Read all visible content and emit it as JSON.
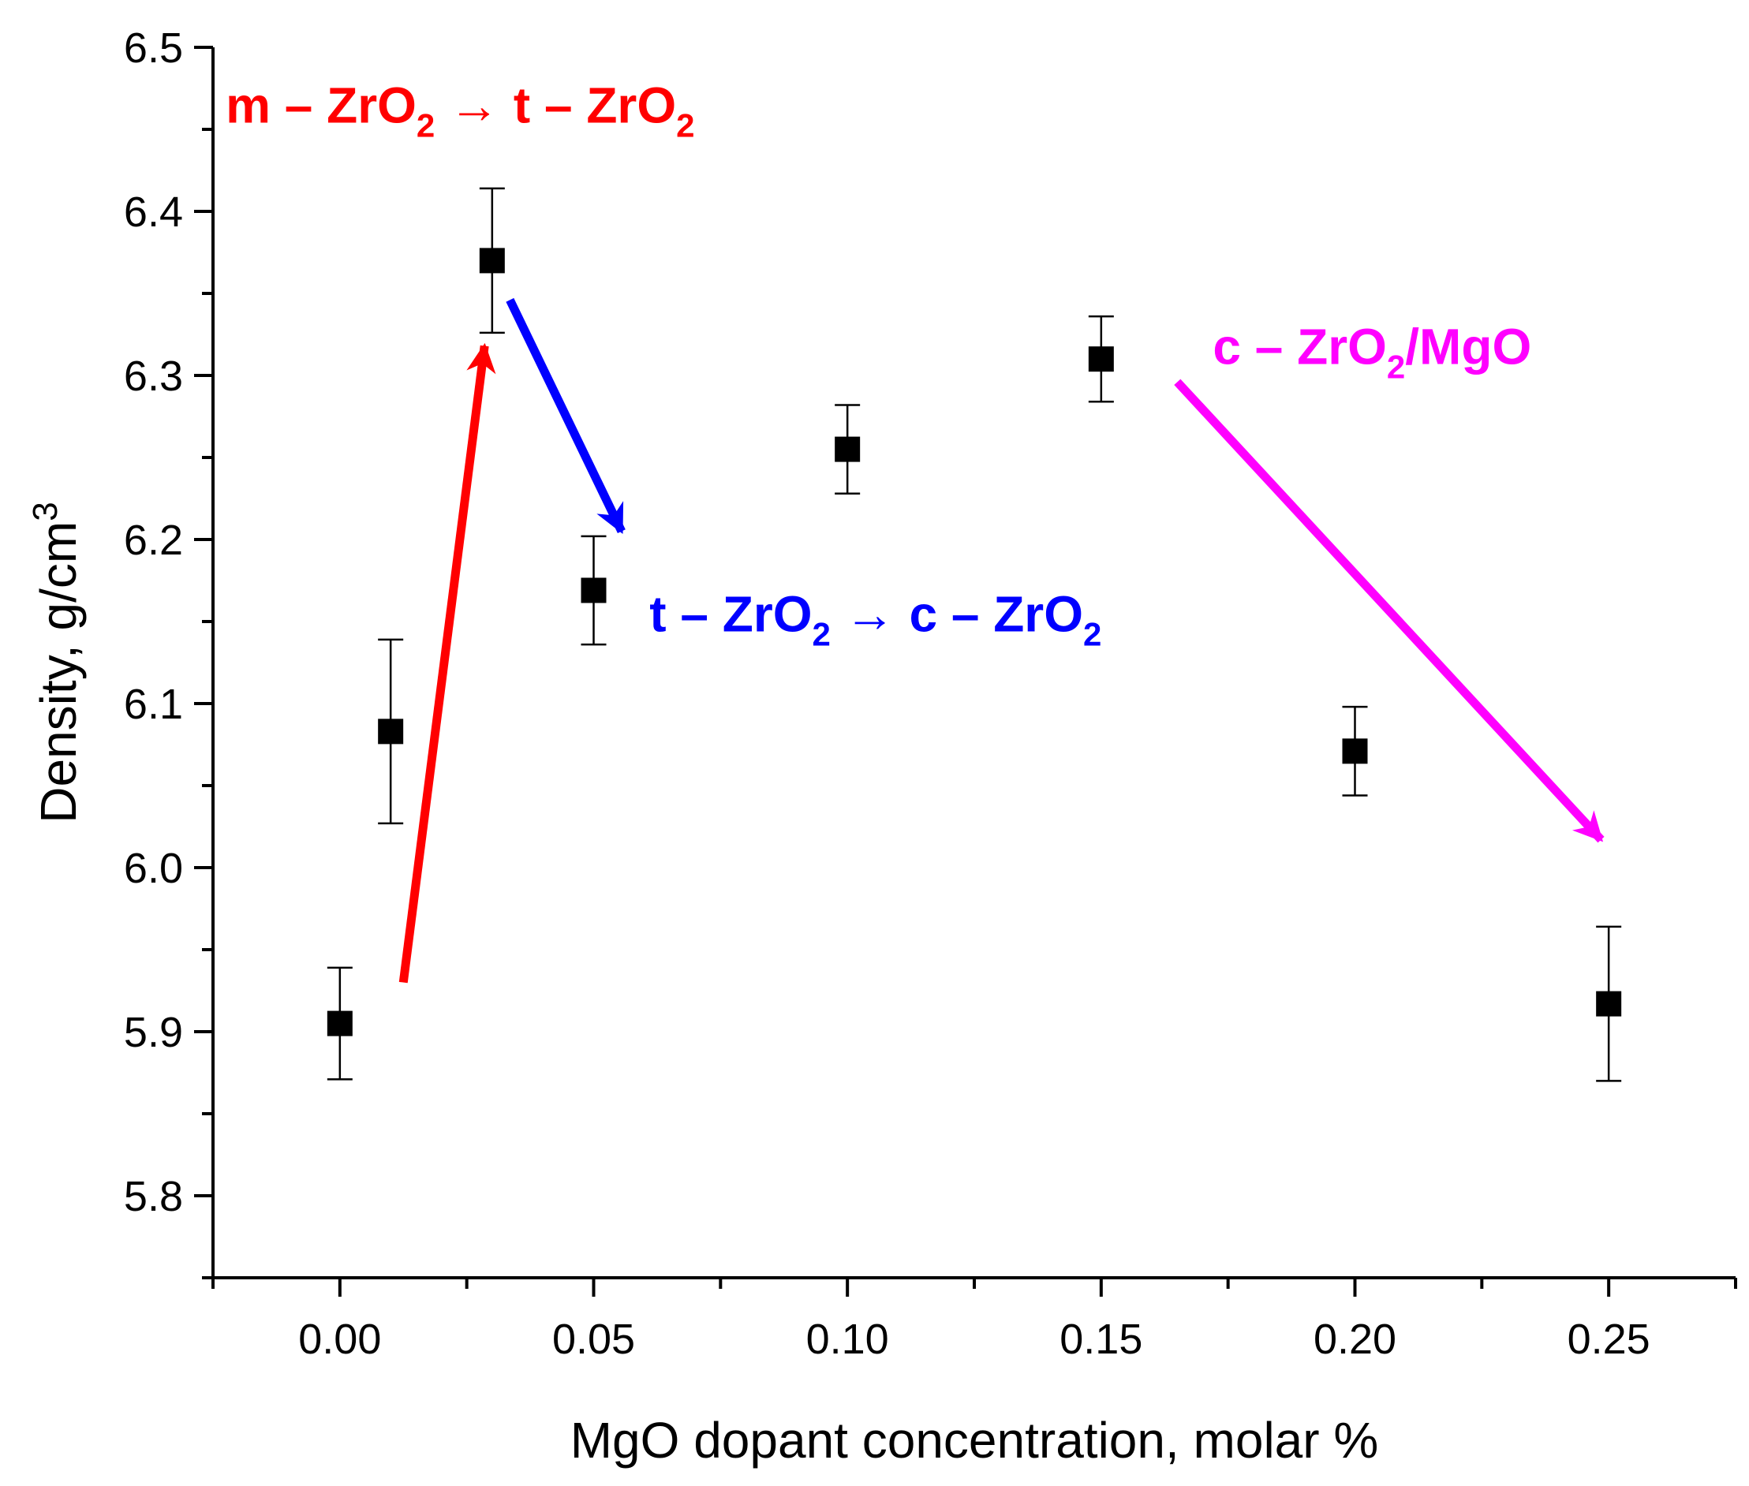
{
  "chart_data": {
    "type": "scatter",
    "title": "",
    "xlabel": "MgO dopant concentration, molar %",
    "ylabel_main": "Density, g/cm",
    "ylabel_sup": "3",
    "xlim": [
      -0.025,
      0.275
    ],
    "ylim": [
      5.75,
      6.5
    ],
    "xticks": [
      {
        "value": 0.0,
        "label": "0.00"
      },
      {
        "value": 0.05,
        "label": "0.05"
      },
      {
        "value": 0.1,
        "label": "0.10"
      },
      {
        "value": 0.15,
        "label": "0.15"
      },
      {
        "value": 0.2,
        "label": "0.20"
      },
      {
        "value": 0.25,
        "label": "0.25"
      }
    ],
    "xminor": [
      -0.025,
      0.025,
      0.075,
      0.125,
      0.175,
      0.225,
      0.275
    ],
    "yticks": [
      {
        "value": 5.8,
        "label": "5.8"
      },
      {
        "value": 5.9,
        "label": "5.9"
      },
      {
        "value": 6.0,
        "label": "6.0"
      },
      {
        "value": 6.1,
        "label": "6.1"
      },
      {
        "value": 6.2,
        "label": "6.2"
      },
      {
        "value": 6.3,
        "label": "6.3"
      },
      {
        "value": 6.4,
        "label": "6.4"
      },
      {
        "value": 6.5,
        "label": "6.5"
      }
    ],
    "yminor": [
      5.75,
      5.85,
      5.95,
      6.05,
      6.15,
      6.25,
      6.35,
      6.45
    ],
    "grid": false,
    "marker_color": "#000000",
    "series": [
      {
        "name": "Density",
        "x": [
          0.0,
          0.01,
          0.03,
          0.05,
          0.1,
          0.15,
          0.2,
          0.25
        ],
        "y": [
          5.905,
          6.083,
          6.37,
          6.169,
          6.255,
          6.31,
          6.071,
          5.917
        ],
        "err": [
          0.034,
          0.056,
          0.044,
          0.033,
          0.027,
          0.026,
          0.027,
          0.047
        ]
      }
    ],
    "annotations": [
      {
        "id": "m-to-t",
        "color": "#ff0000",
        "parts": [
          {
            "text": "m – ZrO"
          },
          {
            "text": "2",
            "sub": true
          },
          {
            "text": " → t – ZrO"
          },
          {
            "text": "2",
            "sub": true
          }
        ],
        "anchor": {
          "x": -0.0225,
          "y": 6.454
        },
        "arrow": {
          "from": {
            "x": 0.0125,
            "y": 5.93
          },
          "to": {
            "x": 0.0285,
            "y": 6.318
          }
        }
      },
      {
        "id": "t-to-c",
        "color": "#0000ff",
        "parts": [
          {
            "text": "t – ZrO"
          },
          {
            "text": "2",
            "sub": true
          },
          {
            "text": " → c – ZrO"
          },
          {
            "text": "2",
            "sub": true
          }
        ],
        "anchor": {
          "x": 0.061,
          "y": 6.144
        },
        "arrow": {
          "from": {
            "x": 0.0335,
            "y": 6.346
          },
          "to": {
            "x": 0.0555,
            "y": 6.205
          }
        }
      },
      {
        "id": "c-mgo",
        "color": "#ff00ff",
        "parts": [
          {
            "text": "c – ZrO"
          },
          {
            "text": "2",
            "sub": true
          },
          {
            "text": "/MgO"
          }
        ],
        "anchor": {
          "x": 0.172,
          "y": 6.307
        },
        "arrow": {
          "from": {
            "x": 0.165,
            "y": 6.296
          },
          "to": {
            "x": 0.2485,
            "y": 6.017
          }
        }
      }
    ]
  }
}
